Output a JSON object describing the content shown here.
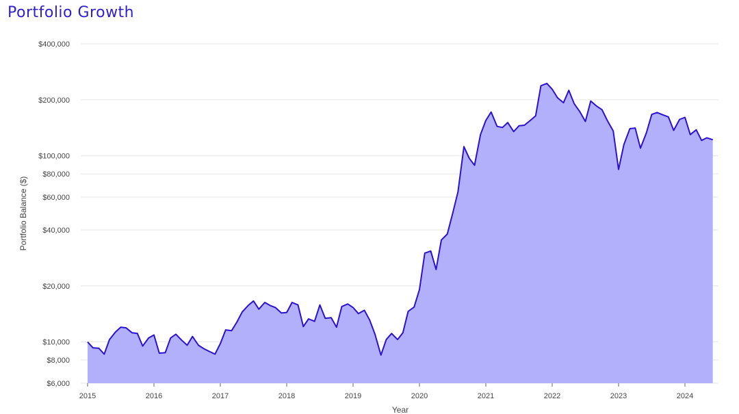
{
  "chart_data": {
    "type": "area",
    "title": "Portfolio Growth",
    "xlabel": "Year",
    "ylabel": "Portfolio Balance ($)",
    "y_scale": "log",
    "ylim": [
      6000,
      400000
    ],
    "xlim": [
      2015,
      2024.5
    ],
    "y_ticks": [
      {
        "value": 400000,
        "label": "$400,000"
      },
      {
        "value": 200000,
        "label": "$200,000"
      },
      {
        "value": 100000,
        "label": "$100,000"
      },
      {
        "value": 80000,
        "label": "$80,000"
      },
      {
        "value": 60000,
        "label": "$60,000"
      },
      {
        "value": 40000,
        "label": "$40,000"
      },
      {
        "value": 20000,
        "label": "$20,000"
      },
      {
        "value": 10000,
        "label": "$10,000"
      },
      {
        "value": 8000,
        "label": "$8,000"
      },
      {
        "value": 6000,
        "label": "$6,000"
      }
    ],
    "x_ticks": [
      {
        "value": 2015,
        "label": "2015"
      },
      {
        "value": 2016,
        "label": "2016"
      },
      {
        "value": 2017,
        "label": "2017"
      },
      {
        "value": 2018,
        "label": "2018"
      },
      {
        "value": 2019,
        "label": "2019"
      },
      {
        "value": 2020,
        "label": "2020"
      },
      {
        "value": 2021,
        "label": "2021"
      },
      {
        "value": 2022,
        "label": "2022"
      },
      {
        "value": 2023,
        "label": "2023"
      },
      {
        "value": 2024,
        "label": "2024"
      }
    ],
    "grid": true,
    "colors": {
      "line": "#2a12d0",
      "fill": "#b3b0fb",
      "grid": "#e6e6e6",
      "title": "#2f1fd1"
    },
    "series": [
      {
        "x": [
          2015.0,
          2015.08,
          2015.17,
          2015.25,
          2015.33,
          2015.42,
          2015.5,
          2015.58,
          2015.67,
          2015.75,
          2015.83,
          2015.92,
          2016.0,
          2016.08,
          2016.17,
          2016.25,
          2016.33,
          2016.42,
          2016.5,
          2016.58,
          2016.67,
          2016.75,
          2016.83,
          2016.92,
          2017.0,
          2017.08,
          2017.17,
          2017.25,
          2017.33,
          2017.42,
          2017.5,
          2017.58,
          2017.67,
          2017.75,
          2017.83,
          2017.92,
          2018.0,
          2018.08,
          2018.17,
          2018.25,
          2018.33,
          2018.42,
          2018.5,
          2018.58,
          2018.67,
          2018.75,
          2018.83,
          2018.92,
          2019.0,
          2019.08,
          2019.17,
          2019.25,
          2019.33,
          2019.42,
          2019.5,
          2019.58,
          2019.67,
          2019.75,
          2019.83,
          2019.92,
          2020.0,
          2020.08,
          2020.17,
          2020.25,
          2020.33,
          2020.42,
          2020.5,
          2020.58,
          2020.67,
          2020.75,
          2020.83,
          2020.92,
          2021.0,
          2021.08,
          2021.17,
          2021.25,
          2021.33,
          2021.42,
          2021.5,
          2021.58,
          2021.67,
          2021.75,
          2021.83,
          2021.92,
          2022.0,
          2022.08,
          2022.17,
          2022.25,
          2022.33,
          2022.42,
          2022.5,
          2022.58,
          2022.67,
          2022.75,
          2022.83,
          2022.92,
          2023.0,
          2023.08,
          2023.17,
          2023.25,
          2023.33,
          2023.42,
          2023.5,
          2023.58,
          2023.67,
          2023.75,
          2023.83,
          2023.92,
          2024.0,
          2024.08,
          2024.17,
          2024.25,
          2024.33,
          2024.42
        ],
        "values": [
          10000,
          9300,
          9250,
          8600,
          10300,
          11300,
          12000,
          11900,
          11200,
          11100,
          9500,
          10500,
          10900,
          8700,
          8750,
          10500,
          11000,
          10200,
          9600,
          10700,
          9600,
          9200,
          8900,
          8600,
          9800,
          11600,
          11500,
          12800,
          14500,
          15700,
          16600,
          15000,
          16300,
          15700,
          15300,
          14300,
          14400,
          16300,
          15800,
          12100,
          13300,
          12900,
          15800,
          13400,
          13500,
          12000,
          15500,
          16000,
          15300,
          14200,
          14800,
          13100,
          11000,
          8500,
          10300,
          11100,
          10300,
          11200,
          14600,
          15400,
          19100,
          30000,
          30800,
          24500,
          35300,
          38000,
          49000,
          64000,
          112000,
          97000,
          89000,
          130000,
          155000,
          172000,
          144000,
          142000,
          151000,
          135000,
          145000,
          146000,
          155000,
          164000,
          238000,
          245000,
          228000,
          205000,
          193000,
          225000,
          191000,
          172000,
          153000,
          197000,
          185000,
          177000,
          155000,
          136000,
          84500,
          115000,
          140000,
          141000,
          110000,
          133000,
          167000,
          171000,
          166000,
          162000,
          137000,
          157000,
          161000,
          130000,
          138000,
          121000,
          125000,
          122000
        ]
      }
    ]
  }
}
